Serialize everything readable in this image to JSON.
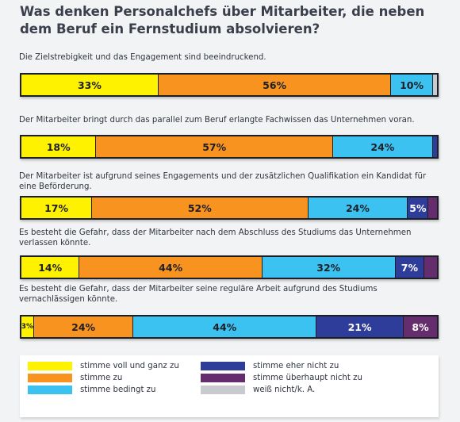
{
  "title": "Was denken Personalchefs über Mitarbeiter, die neben dem Beruf ein Fernstudium absolvieren?",
  "colors": {
    "stimme voll und ganz zu": "#fff200",
    "stimme zu": "#f7931e",
    "stimme bedingt zu": "#3cc2f0",
    "stimme eher nicht zu": "#2e3d9a",
    "stimme überhaupt nicht zu": "#662d6e",
    "weiß nicht/k. A.": "#c8cad0"
  },
  "chart_data": {
    "type": "bar",
    "orientation": "horizontal",
    "stacked": true,
    "title": "Was denken Personalchefs über Mitarbeiter, die neben dem Beruf ein Fernstudium absolvieren?",
    "categories": [
      "Die Zielstrebigkeit und das Engagement sind beeindruckend.",
      "Der Mitarbeiter bringt durch das parallel zum Beruf erlangte Fachwissen das Unternehmen voran.",
      "Der Mitarbeiter ist aufgrund seines Engagements und der zusätzlichen Qualifikation ein Kandidat für eine Beförderung.",
      "Es besteht die Gefahr, dass der Mitarbeiter nach dem Abschluss des Studiums das Unternehmen verlassen könnte.",
      "Es besteht die Gefahr, dass der Mitarbeiter seine reguläre Arbeit aufgrund des Studiums vernachlässigen könnte."
    ],
    "series": [
      {
        "name": "stimme voll und ganz zu",
        "values": [
          33,
          18,
          17,
          14,
          3
        ]
      },
      {
        "name": "stimme zu",
        "values": [
          56,
          57,
          52,
          44,
          24
        ]
      },
      {
        "name": "stimme bedingt zu",
        "values": [
          10,
          24,
          24,
          32,
          44
        ]
      },
      {
        "name": "stimme eher nicht zu",
        "values": [
          0,
          1,
          5,
          7,
          21
        ]
      },
      {
        "name": "stimme überhaupt nicht zu",
        "values": [
          0,
          0,
          2,
          3,
          8
        ]
      },
      {
        "name": "weiß nicht/k. A.",
        "values": [
          1,
          0,
          0,
          0,
          0
        ]
      }
    ],
    "labels": [
      [
        "33%",
        "56%",
        "10%",
        "",
        "",
        ""
      ],
      [
        "18%",
        "57%",
        "24%",
        "",
        "",
        ""
      ],
      [
        "17%",
        "52%",
        "24%",
        "5%",
        "",
        ""
      ],
      [
        "14%",
        "44%",
        "32%",
        "7%",
        "",
        ""
      ],
      [
        "3%",
        "24%",
        "44%",
        "21%",
        "8%",
        ""
      ]
    ],
    "legend": [
      "stimme voll und ganz zu",
      "stimme zu",
      "stimme bedingt zu",
      "stimme eher nicht zu",
      "stimme überhaupt nicht zu",
      "weiß nicht/k. A."
    ],
    "legend_position": "bottom"
  }
}
